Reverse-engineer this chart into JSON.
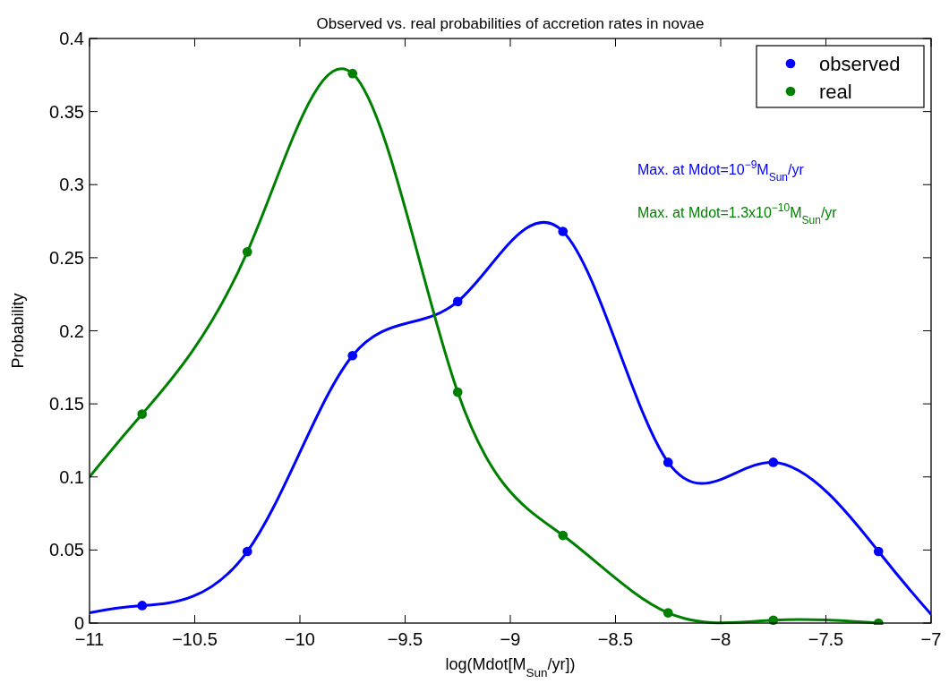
{
  "chart_data": {
    "type": "line",
    "title": "Observed vs. real probabilities of accretion rates in novae",
    "xlabel": "log(Mdot[M$_{Sun}$/yr])",
    "ylabel": "Probability",
    "xlim": [
      -11,
      -7
    ],
    "xticks": [
      -11,
      -10.5,
      -10,
      -9.5,
      -9,
      -8.5,
      -8,
      -7.5,
      -7
    ],
    "ylim": [
      0,
      0.4
    ],
    "yticks": [
      0,
      0.05,
      0.1,
      0.15,
      0.2,
      0.25,
      0.3,
      0.35,
      0.4
    ],
    "grid": false,
    "legend": "top right",
    "series": [
      {
        "color": "#0000ff",
        "x": [
          -11,
          -10.75,
          -10.25,
          -9.75,
          -9.25,
          -8.75,
          -8.25,
          -7.75,
          -7.25,
          -7
        ],
        "values": [
          0.007,
          0.012,
          0.049,
          0.183,
          0.22,
          0.268,
          0.11,
          0.11,
          0.049,
          0.006
        ]
      },
      {
        "color": "#008000",
        "x": [
          -11,
          -10.75,
          -10.25,
          -9.75,
          -9.25,
          -8.75,
          -8.25,
          -7.75,
          -7.25
        ],
        "values": [
          0.1,
          0.143,
          0.254,
          0.376,
          0.158,
          0.06,
          0.007,
          0.002,
          0
        ]
      },
      {
        "type": "scatter",
        "name": "observed",
        "color": "#0000ff",
        "marker": "circle",
        "x": [
          -10.75,
          -10.25,
          -9.75,
          -9.25,
          -8.75,
          -8.25,
          -7.75,
          -7.25
        ],
        "values": [
          0.012,
          0.049,
          0.183,
          0.22,
          0.268,
          0.11,
          0.11,
          0.049
        ]
      },
      {
        "type": "scatter",
        "name": "real",
        "color": "#008000",
        "marker": "circle",
        "x": [
          -10.75,
          -10.25,
          -9.75,
          -9.25,
          -8.75,
          -8.25,
          -7.75,
          -7.25
        ],
        "values": [
          0.143,
          0.254,
          0.376,
          0.158,
          0.06,
          0.007,
          0.002,
          0
        ]
      }
    ],
    "annotations": [
      "Max. at Mdot=10$^{−9}$M$_{Sun}$/yr",
      "Max. at Mdot=1.3x10$^{−10}$M$_{Sun}$/yr"
    ]
  }
}
